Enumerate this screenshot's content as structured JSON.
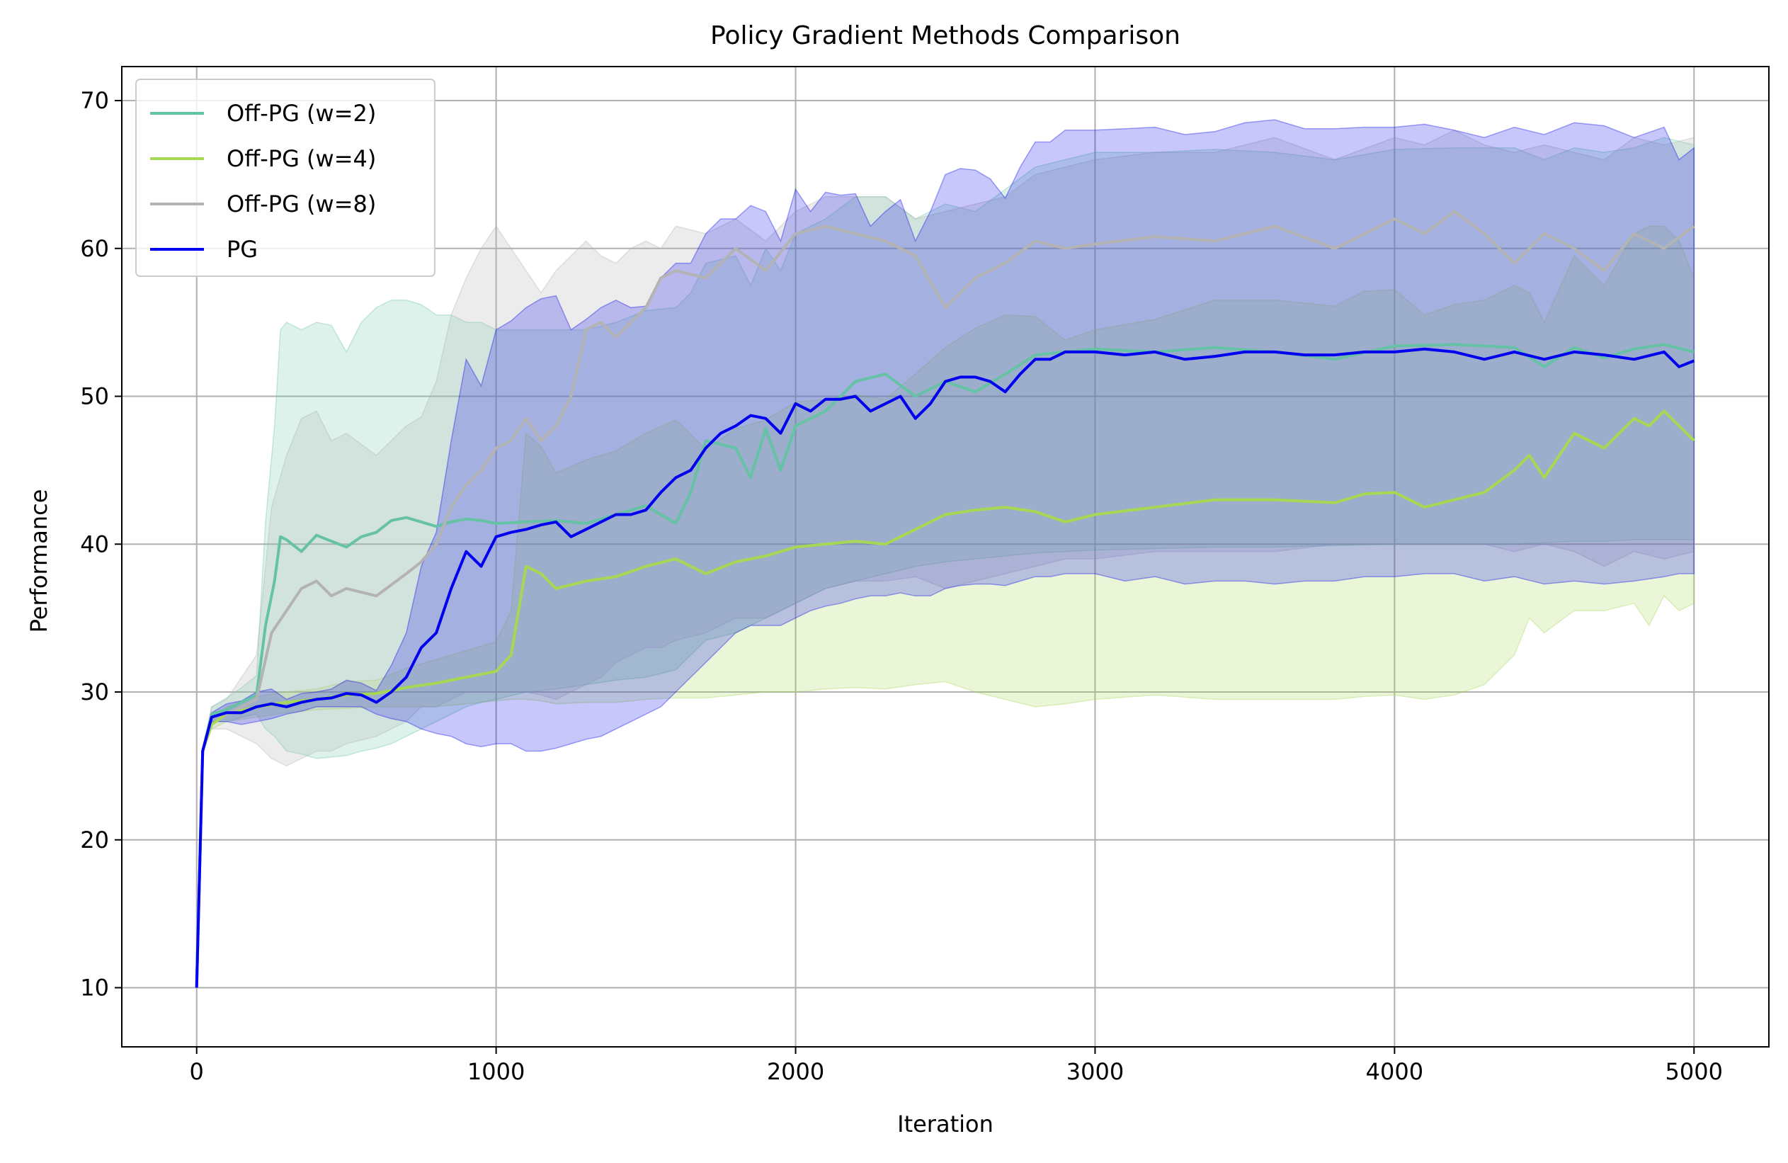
{
  "chart_data": {
    "type": "line",
    "title": "Policy Gradient Methods Comparison",
    "xlabel": "Iteration",
    "ylabel": "Performance",
    "xlim": [
      -250,
      5250
    ],
    "ylim": [
      6,
      72.3
    ],
    "xticks": [
      0,
      1000,
      2000,
      3000,
      4000,
      5000
    ],
    "yticks": [
      10,
      20,
      30,
      40,
      50,
      60,
      70
    ],
    "grid": true,
    "legend_position": "top-left",
    "series": [
      {
        "name": "Off-PG (w=2)",
        "color": "#66c2a5",
        "x": [
          0,
          20,
          50,
          100,
          150,
          200,
          230,
          260,
          280,
          300,
          350,
          400,
          450,
          500,
          550,
          600,
          650,
          700,
          750,
          800,
          850,
          900,
          950,
          1000,
          1100,
          1200,
          1300,
          1400,
          1500,
          1600,
          1650,
          1700,
          1800,
          1850,
          1900,
          1950,
          2000,
          2100,
          2200,
          2300,
          2400,
          2500,
          2600,
          2700,
          2800,
          2900,
          3000,
          3200,
          3400,
          3600,
          3800,
          4000,
          4200,
          4400,
          4500,
          4600,
          4700,
          4800,
          4900,
          5000
        ],
        "y": [
          10,
          26,
          28.5,
          28.8,
          29.3,
          29.8,
          34.5,
          37.5,
          40.5,
          40.3,
          39.5,
          40.6,
          40.2,
          39.8,
          40.5,
          40.8,
          41.6,
          41.8,
          41.5,
          41.2,
          41.5,
          41.7,
          41.6,
          41.4,
          41.5,
          41.6,
          41.4,
          42.0,
          42.6,
          41.4,
          43.5,
          47.0,
          46.5,
          44.5,
          47.8,
          45.0,
          48.0,
          49.0,
          51.0,
          51.5,
          50.0,
          51.0,
          50.3,
          51.5,
          52.8,
          53.0,
          53.2,
          53.0,
          53.3,
          53.0,
          52.5,
          53.4,
          53.5,
          53.3,
          52.0,
          53.3,
          52.6,
          53.2,
          53.5,
          53.0
        ],
        "lower": [
          10,
          26,
          28.0,
          28.0,
          28.3,
          28.5,
          27.5,
          27.0,
          26.5,
          26.0,
          25.8,
          25.5,
          25.6,
          25.7,
          26.0,
          26.2,
          26.5,
          27.0,
          27.5,
          28.0,
          28.5,
          29.0,
          29.3,
          29.5,
          30.0,
          30.2,
          30.5,
          30.8,
          31.0,
          31.5,
          32.5,
          33.5,
          34.0,
          34.5,
          35.0,
          35.5,
          36.0,
          37.0,
          37.5,
          38.0,
          38.5,
          38.8,
          39.0,
          39.2,
          39.4,
          39.5,
          39.6,
          39.7,
          39.8,
          39.8,
          39.9,
          40.0,
          40.0,
          40.0,
          40.1,
          40.2,
          40.2,
          40.3,
          40.3,
          40.3
        ],
        "upper": [
          10,
          26,
          29.0,
          29.6,
          30.3,
          31.1,
          41.5,
          48.0,
          54.5,
          55.0,
          54.5,
          55.0,
          54.8,
          53.0,
          55.0,
          56.0,
          56.5,
          56.5,
          56.2,
          55.5,
          55.5,
          55.0,
          55.0,
          54.5,
          54.5,
          54.5,
          54.5,
          55.0,
          55.8,
          56.0,
          57.0,
          59.0,
          59.5,
          57.5,
          60.0,
          58.5,
          61.0,
          62.0,
          63.5,
          63.5,
          62.0,
          63.0,
          62.5,
          64.0,
          65.5,
          66.0,
          66.5,
          66.5,
          66.7,
          66.5,
          66.0,
          66.7,
          66.8,
          66.8,
          66.0,
          66.8,
          66.5,
          66.8,
          67.5,
          67.0
        ]
      },
      {
        "name": "Off-PG (w=4)",
        "color": "#a6d854",
        "x": [
          0,
          20,
          50,
          100,
          200,
          300,
          400,
          500,
          600,
          700,
          800,
          900,
          1000,
          1050,
          1100,
          1150,
          1200,
          1300,
          1400,
          1500,
          1600,
          1700,
          1800,
          1900,
          2000,
          2100,
          2200,
          2300,
          2400,
          2500,
          2600,
          2700,
          2800,
          2900,
          3000,
          3200,
          3400,
          3600,
          3800,
          3900,
          4000,
          4100,
          4200,
          4300,
          4400,
          4450,
          4500,
          4600,
          4700,
          4800,
          4850,
          4900,
          4950,
          5000
        ],
        "y": [
          10,
          26,
          27.8,
          28.5,
          29.0,
          29.3,
          29.5,
          29.8,
          29.9,
          30.3,
          30.6,
          31.0,
          31.4,
          32.5,
          38.5,
          38.0,
          37.0,
          37.5,
          37.8,
          38.5,
          39.0,
          38.0,
          38.8,
          39.2,
          39.8,
          40.0,
          40.2,
          40.0,
          41.0,
          42.0,
          42.3,
          42.5,
          42.2,
          41.5,
          42.0,
          42.5,
          43.0,
          43.0,
          42.8,
          43.4,
          43.5,
          42.5,
          43.0,
          43.5,
          45.0,
          46.0,
          44.5,
          47.5,
          46.5,
          48.5,
          48.0,
          49.0,
          48.0,
          47.0
        ],
        "lower": [
          10,
          26,
          27.5,
          28.0,
          28.3,
          28.6,
          28.8,
          28.9,
          29.0,
          29.0,
          29.0,
          29.2,
          29.4,
          29.5,
          29.5,
          29.4,
          29.2,
          29.3,
          29.3,
          29.5,
          29.6,
          29.6,
          29.8,
          30.0,
          30.0,
          30.2,
          30.3,
          30.2,
          30.5,
          30.7,
          30.0,
          29.5,
          29.0,
          29.2,
          29.5,
          29.8,
          29.5,
          29.5,
          29.5,
          29.7,
          29.8,
          29.5,
          29.8,
          30.5,
          32.5,
          35.0,
          34.0,
          35.5,
          35.5,
          36.0,
          34.5,
          36.5,
          35.5,
          36.0
        ],
        "upper": [
          10,
          26,
          28.2,
          29.0,
          29.7,
          30.0,
          30.2,
          30.7,
          30.8,
          31.6,
          32.2,
          32.8,
          33.4,
          35.5,
          47.5,
          46.6,
          44.8,
          45.7,
          46.3,
          47.5,
          48.4,
          46.4,
          47.8,
          48.4,
          49.6,
          49.8,
          50.1,
          49.8,
          51.5,
          53.3,
          54.6,
          55.5,
          55.4,
          53.8,
          54.5,
          55.2,
          56.5,
          56.5,
          56.1,
          57.1,
          57.2,
          55.5,
          56.2,
          56.5,
          57.5,
          57.0,
          55.0,
          59.5,
          57.5,
          61.0,
          61.5,
          61.5,
          60.5,
          58.0
        ]
      },
      {
        "name": "Off-PG (w=8)",
        "color": "#b3b3b3",
        "x": [
          0,
          20,
          50,
          100,
          150,
          200,
          250,
          300,
          350,
          400,
          450,
          500,
          600,
          700,
          750,
          800,
          850,
          900,
          950,
          1000,
          1050,
          1100,
          1150,
          1200,
          1250,
          1300,
          1350,
          1400,
          1450,
          1500,
          1550,
          1600,
          1700,
          1800,
          1900,
          2000,
          2100,
          2200,
          2300,
          2400,
          2500,
          2600,
          2700,
          2800,
          2900,
          3000,
          3200,
          3400,
          3600,
          3800,
          4000,
          4100,
          4200,
          4300,
          4400,
          4500,
          4600,
          4700,
          4800,
          4900,
          5000
        ],
        "y": [
          10,
          26,
          28.3,
          28.5,
          29.0,
          29.5,
          34.0,
          35.5,
          37.0,
          37.5,
          36.5,
          37.0,
          36.5,
          38.0,
          38.8,
          40.0,
          42.5,
          44.0,
          45.0,
          46.5,
          47.0,
          48.5,
          47.0,
          48.0,
          50.0,
          54.5,
          55.0,
          54.0,
          55.0,
          56.0,
          58.0,
          58.5,
          58.0,
          60.0,
          58.5,
          61.0,
          61.5,
          61.0,
          60.5,
          59.5,
          56.0,
          58.0,
          59.0,
          60.5,
          60.0,
          60.3,
          60.8,
          60.5,
          61.5,
          60.0,
          62.0,
          61.0,
          62.5,
          61.0,
          59.0,
          61.0,
          60.0,
          58.5,
          61.0,
          60.0,
          61.5
        ],
        "lower": [
          10,
          26,
          27.5,
          27.5,
          27.0,
          26.5,
          25.5,
          25.0,
          25.5,
          26.0,
          26.0,
          26.5,
          27.0,
          28.0,
          29.0,
          29.0,
          29.5,
          30.0,
          30.0,
          30.0,
          30.0,
          30.0,
          29.8,
          29.5,
          30.0,
          30.5,
          31.0,
          32.0,
          32.5,
          33.0,
          33.0,
          33.5,
          34.0,
          35.0,
          35.0,
          36.0,
          37.0,
          37.5,
          37.5,
          37.8,
          37.0,
          37.5,
          38.0,
          38.5,
          39.0,
          39.0,
          39.5,
          39.5,
          39.5,
          40.0,
          40.0,
          40.0,
          40.0,
          40.0,
          39.5,
          40.0,
          39.5,
          38.5,
          39.5,
          39.0,
          39.5
        ],
        "upper": [
          10,
          26,
          29.0,
          29.5,
          31.0,
          32.5,
          42.5,
          46.0,
          48.5,
          49.0,
          47.0,
          47.5,
          46.0,
          48.0,
          48.6,
          51.0,
          55.5,
          58.0,
          60.0,
          61.5,
          60.0,
          58.5,
          57.0,
          58.5,
          59.5,
          60.5,
          59.5,
          59.0,
          60.0,
          60.5,
          60.0,
          61.5,
          61.0,
          62.0,
          60.5,
          62.5,
          63.5,
          63.5,
          63.5,
          62.0,
          62.5,
          63.0,
          63.5,
          65.0,
          65.5,
          66.0,
          66.5,
          66.5,
          67.5,
          66.0,
          67.5,
          67.0,
          68.0,
          67.0,
          66.5,
          67.0,
          66.5,
          66.0,
          67.5,
          67.0,
          67.5
        ]
      },
      {
        "name": "PG",
        "color": "#0000ee",
        "x": [
          0,
          20,
          50,
          100,
          150,
          200,
          250,
          300,
          350,
          400,
          450,
          500,
          550,
          600,
          650,
          700,
          750,
          800,
          850,
          900,
          950,
          1000,
          1050,
          1100,
          1150,
          1200,
          1250,
          1300,
          1350,
          1400,
          1450,
          1500,
          1550,
          1600,
          1650,
          1700,
          1750,
          1800,
          1850,
          1900,
          1950,
          2000,
          2050,
          2100,
          2150,
          2200,
          2250,
          2300,
          2350,
          2400,
          2450,
          2500,
          2550,
          2600,
          2650,
          2700,
          2750,
          2800,
          2850,
          2900,
          2950,
          3000,
          3100,
          3200,
          3300,
          3400,
          3500,
          3600,
          3700,
          3800,
          3900,
          4000,
          4100,
          4200,
          4300,
          4400,
          4500,
          4600,
          4700,
          4800,
          4900,
          4950,
          5000
        ],
        "y": [
          10,
          26,
          28.3,
          28.6,
          28.6,
          29.0,
          29.2,
          29.0,
          29.3,
          29.5,
          29.6,
          29.9,
          29.8,
          29.3,
          30.0,
          31.0,
          33.0,
          34.0,
          37.0,
          39.5,
          38.5,
          40.5,
          40.8,
          41.0,
          41.3,
          41.5,
          40.5,
          41.0,
          41.5,
          42.0,
          42.0,
          42.3,
          43.5,
          44.5,
          45.0,
          46.5,
          47.5,
          48.0,
          48.7,
          48.5,
          47.5,
          49.5,
          49.0,
          49.8,
          49.8,
          50.0,
          49.0,
          49.5,
          50.0,
          48.5,
          49.5,
          51.0,
          51.3,
          51.3,
          51.0,
          50.3,
          51.5,
          52.5,
          52.5,
          53.0,
          53.0,
          53.0,
          52.8,
          53.0,
          52.5,
          52.7,
          53.0,
          53.0,
          52.8,
          52.8,
          53.0,
          53.0,
          53.2,
          53.0,
          52.5,
          53.0,
          52.5,
          53.0,
          52.8,
          52.5,
          53.0,
          52.0,
          52.4
        ],
        "lower": [
          10,
          26,
          28.0,
          28.0,
          27.8,
          28.0,
          28.2,
          28.5,
          28.7,
          29.0,
          29.0,
          29.0,
          29.0,
          28.5,
          28.2,
          28.0,
          27.5,
          27.2,
          27.0,
          26.5,
          26.3,
          26.5,
          26.5,
          26.0,
          26.0,
          26.2,
          26.5,
          26.8,
          27.0,
          27.5,
          28.0,
          28.5,
          29.0,
          30.0,
          31.0,
          32.0,
          33.0,
          34.0,
          34.5,
          34.5,
          34.5,
          35.0,
          35.5,
          35.8,
          36.0,
          36.3,
          36.5,
          36.5,
          36.7,
          36.5,
          36.5,
          37.0,
          37.2,
          37.3,
          37.3,
          37.2,
          37.5,
          37.8,
          37.8,
          38.0,
          38.0,
          38.0,
          37.5,
          37.8,
          37.3,
          37.5,
          37.5,
          37.3,
          37.5,
          37.5,
          37.8,
          37.8,
          38.0,
          38.0,
          37.5,
          37.8,
          37.3,
          37.5,
          37.3,
          37.5,
          37.8,
          38.0,
          38.0
        ],
        "upper": [
          10,
          26,
          28.6,
          29.2,
          29.4,
          30.0,
          30.2,
          29.5,
          29.9,
          30.0,
          30.2,
          30.8,
          30.6,
          30.1,
          31.8,
          34.0,
          38.5,
          40.8,
          47.0,
          52.5,
          50.7,
          54.5,
          55.1,
          56.0,
          56.6,
          56.8,
          54.5,
          55.2,
          56.0,
          56.5,
          56.0,
          56.1,
          58.0,
          59.0,
          59.0,
          61.0,
          62.0,
          62.0,
          62.9,
          62.5,
          60.5,
          64.0,
          62.5,
          63.8,
          63.6,
          63.7,
          61.5,
          62.5,
          63.3,
          60.5,
          62.5,
          65.0,
          65.4,
          65.3,
          64.7,
          63.4,
          65.5,
          67.2,
          67.2,
          68.0,
          68.0,
          68.0,
          68.1,
          68.2,
          67.7,
          67.9,
          68.5,
          68.7,
          68.1,
          68.1,
          68.2,
          68.2,
          68.4,
          68.0,
          67.5,
          68.2,
          67.7,
          68.5,
          68.3,
          67.5,
          68.2,
          66.0,
          66.8
        ]
      }
    ]
  }
}
